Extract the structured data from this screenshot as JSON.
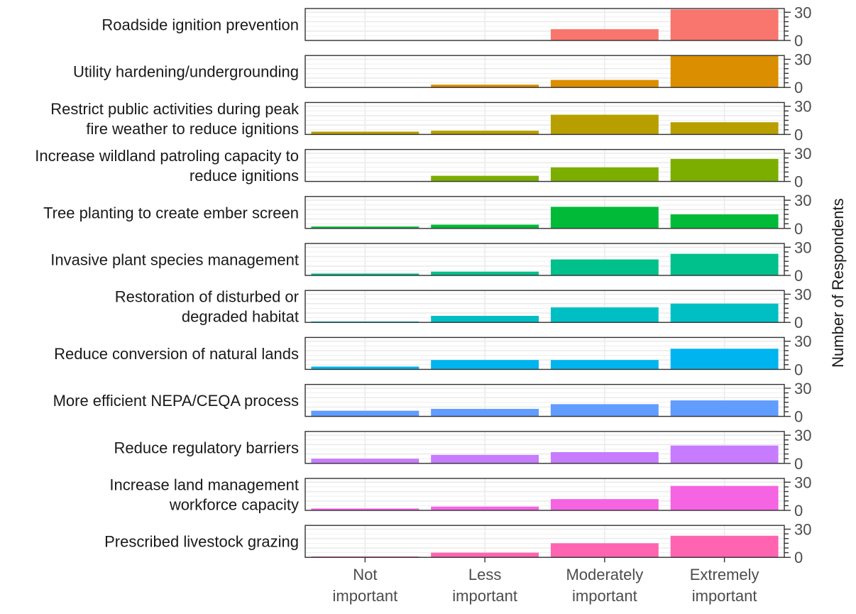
{
  "chart_data": {
    "type": "bar",
    "facet_by": "strategy",
    "categories": [
      "Not important",
      "Less important",
      "Moderately important",
      "Extremely important"
    ],
    "category_lines": [
      [
        "Not",
        "important"
      ],
      [
        "Less",
        "important"
      ],
      [
        "Moderately",
        "important"
      ],
      [
        "Extremely",
        "important"
      ]
    ],
    "ylabel": "Number of Respondents",
    "xlabel": "",
    "ylim": [
      0,
      34
    ],
    "yticks": [
      0,
      30
    ],
    "grid": true,
    "legend": "none",
    "panels": [
      {
        "name": "Roadside ignition prevention",
        "lines": [
          "Roadside ignition prevention"
        ],
        "color": "#F8766D",
        "values": [
          0,
          0,
          12,
          33
        ]
      },
      {
        "name": "Utility hardening/undergrounding",
        "lines": [
          "Utility hardening/undergrounding"
        ],
        "color": "#DB8E00",
        "values": [
          0,
          3,
          8,
          34
        ]
      },
      {
        "name": "Restrict public activities during peak fire weather to reduce ignitions",
        "lines": [
          "Restrict public activities during peak",
          "fire weather to reduce ignitions"
        ],
        "color": "#B79F00",
        "values": [
          3,
          4,
          21,
          13
        ]
      },
      {
        "name": "Increase wildland patroling capacity to reduce ignitions",
        "lines": [
          "Increase wildland patroling capacity to",
          "reduce ignitions"
        ],
        "color": "#7CAE00",
        "values": [
          0,
          6,
          15,
          24
        ]
      },
      {
        "name": "Tree planting to create ember screen",
        "lines": [
          "Tree planting to create ember screen"
        ],
        "color": "#00BA38",
        "values": [
          2,
          4,
          23,
          15
        ]
      },
      {
        "name": "Invasive plant species management",
        "lines": [
          "Invasive plant species management"
        ],
        "color": "#00C08B",
        "values": [
          2,
          4,
          17,
          23
        ]
      },
      {
        "name": "Restoration of disturbed or degraded habitat",
        "lines": [
          "Restoration of disturbed or",
          "degraded habitat"
        ],
        "color": "#00BFC4",
        "values": [
          1,
          7,
          16,
          20
        ]
      },
      {
        "name": "Reduce conversion of natural lands",
        "lines": [
          "Reduce conversion of natural lands"
        ],
        "color": "#00B4F0",
        "values": [
          3,
          10,
          10,
          22
        ]
      },
      {
        "name": "More efficient NEPA/CEQA process",
        "lines": [
          "More efficient NEPA/CEQA process"
        ],
        "color": "#619CFF",
        "values": [
          6,
          8,
          13,
          17
        ]
      },
      {
        "name": "Reduce regulatory barriers",
        "lines": [
          "Reduce regulatory barriers"
        ],
        "color": "#C77CFF",
        "values": [
          5,
          9,
          12,
          19
        ]
      },
      {
        "name": "Increase land management workforce capacity",
        "lines": [
          "Increase land management",
          "workforce capacity"
        ],
        "color": "#F564E3",
        "values": [
          2,
          4,
          12,
          26
        ]
      },
      {
        "name": "Prescribed livestock grazing",
        "lines": [
          "Prescribed livestock grazing"
        ],
        "color": "#FF64B0",
        "values": [
          1,
          5,
          15,
          23
        ]
      }
    ]
  }
}
